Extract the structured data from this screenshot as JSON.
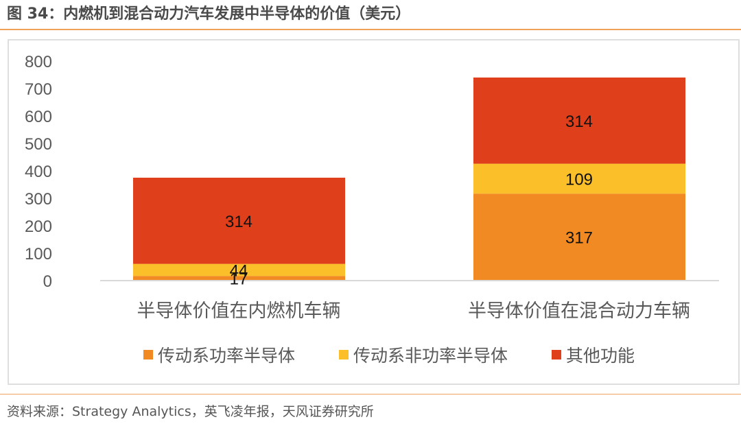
{
  "figure": {
    "title": "图 34：内燃机到混合动力汽车发展中半导体的价值（美元）",
    "source": "资料来源：Strategy Analytics，英飞凌年报，天风证券研究所"
  },
  "colors": {
    "accent_rule": "#f2a15a",
    "series": [
      "#f28a24",
      "#fbbf2a",
      "#e03f1b"
    ]
  },
  "chart_data": {
    "type": "bar",
    "stacked": true,
    "title": "",
    "xlabel": "",
    "ylabel": "",
    "categories": [
      "半导体价值在内燃机车辆",
      "半导体价值在混合动力车辆"
    ],
    "series": [
      {
        "name": "传动系功率半导体",
        "values": [
          17,
          317
        ]
      },
      {
        "name": "传动系非功率半导体",
        "values": [
          44,
          109
        ]
      },
      {
        "name": "其他功能",
        "values": [
          314,
          314
        ]
      }
    ],
    "ylim": [
      0,
      800
    ],
    "yticks": [
      0,
      100,
      200,
      300,
      400,
      500,
      600,
      700,
      800
    ],
    "grid": false,
    "legend": "bottom"
  }
}
